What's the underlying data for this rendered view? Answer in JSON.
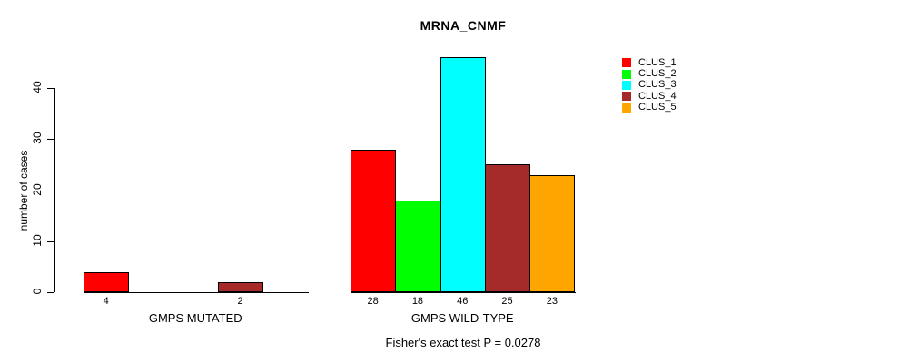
{
  "chart_data": {
    "type": "bar",
    "title": "MRNA_CNMF",
    "ylabel": "number of cases",
    "xlabel": "",
    "footnote": "Fisher's exact test P = 0.0278",
    "yticks": [
      0,
      10,
      20,
      30,
      40
    ],
    "ylim": [
      0,
      46
    ],
    "grid": false,
    "legend_position": "right-outside-top",
    "legend": [
      {
        "label": "CLUS_1",
        "color": "#FF0000"
      },
      {
        "label": "CLUS_2",
        "color": "#00FF00"
      },
      {
        "label": "CLUS_3",
        "color": "#00FFFF"
      },
      {
        "label": "CLUS_4",
        "color": "#A52A2A"
      },
      {
        "label": "CLUS_5",
        "color": "#FFA500"
      }
    ],
    "categories": [
      "GMPS MUTATED",
      "GMPS WILD-TYPE"
    ],
    "series": [
      {
        "name": "CLUS_1",
        "values": [
          4,
          28
        ]
      },
      {
        "name": "CLUS_2",
        "values": [
          0,
          18
        ]
      },
      {
        "name": "CLUS_3",
        "values": [
          0,
          46
        ]
      },
      {
        "name": "CLUS_4",
        "values": [
          2,
          25
        ]
      },
      {
        "name": "CLUS_5",
        "values": [
          0,
          23
        ]
      }
    ],
    "groups": [
      {
        "label": "GMPS MUTATED",
        "values": [
          4,
          0,
          0,
          2,
          0
        ]
      },
      {
        "label": "GMPS WILD-TYPE",
        "values": [
          28,
          18,
          46,
          25,
          23
        ]
      }
    ],
    "bar_value_labels_shown_only_when_nonzero": true,
    "bar_border_color": "#000000",
    "background_color": "#FFFFFF"
  }
}
